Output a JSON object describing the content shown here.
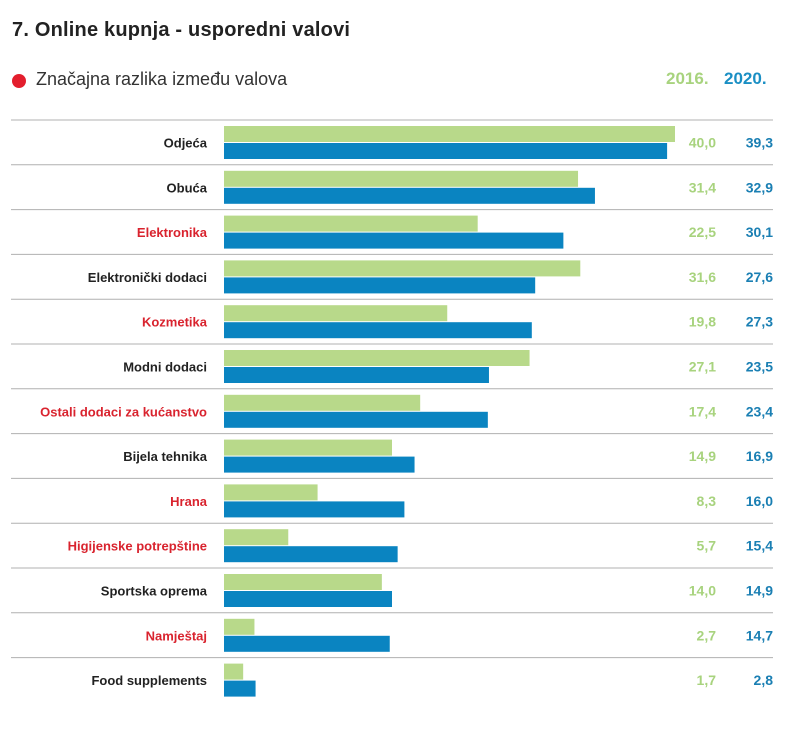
{
  "title": "7. Online kupnja - usporedni valovi",
  "legend": {
    "significance_label": "Značajna razlika između valova",
    "significance_color": "#e31e2d"
  },
  "colors": {
    "series_2016": "#b8d98a",
    "series_2020": "#0a84c1",
    "value_2016": "#a8d37e",
    "value_2020": "#1a7fb3",
    "label_normal": "#222222",
    "label_significant": "#d9232e",
    "divider": "#b0b0b0"
  },
  "chart_data": {
    "type": "bar",
    "orientation": "horizontal",
    "title": "7. Online kupnja - usporedni valovi",
    "xlim": [
      0,
      40
    ],
    "grid": false,
    "categories": [
      "Odjeća",
      "Obuća",
      "Elektronika",
      "Elektronički dodaci",
      "Kozmetika",
      "Modni dodaci",
      "Ostali dodaci za kućanstvo",
      "Bijela tehnika",
      "Hrana",
      "Higijenske potrepštine",
      "Sportska oprema",
      "Namještaj",
      "Food supplements"
    ],
    "significant": [
      false,
      false,
      true,
      false,
      true,
      false,
      true,
      false,
      true,
      true,
      false,
      true,
      false
    ],
    "series": [
      {
        "name": "2016.",
        "values": [
          40.0,
          31.4,
          22.5,
          31.6,
          19.8,
          27.1,
          17.4,
          14.9,
          8.3,
          5.7,
          14.0,
          2.7,
          1.7
        ],
        "labels": [
          "40,0",
          "31,4",
          "22,5",
          "31,6",
          "19,8",
          "27,1",
          "17,4",
          "14,9",
          "8,3",
          "5,7",
          "14,0",
          "2,7",
          "1,7"
        ]
      },
      {
        "name": "2020.",
        "values": [
          39.3,
          32.9,
          30.1,
          27.6,
          27.3,
          23.5,
          23.4,
          16.9,
          16.0,
          15.4,
          14.9,
          14.7,
          2.8
        ],
        "labels": [
          "39,3",
          "32,9",
          "30,1",
          "27,6",
          "27,3",
          "23,5",
          "23,4",
          "16,9",
          "16,0",
          "15,4",
          "14,9",
          "14,7",
          "2,8"
        ]
      }
    ]
  }
}
